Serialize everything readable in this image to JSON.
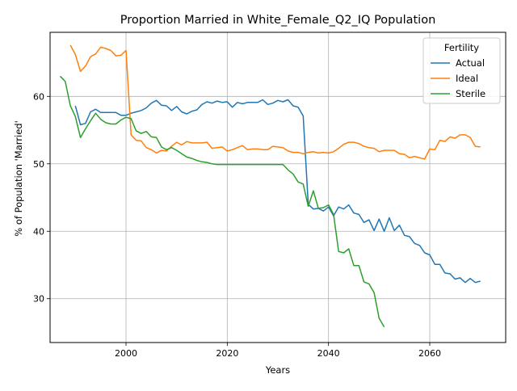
{
  "chart_data": {
    "type": "line",
    "title": "Proportion Married in White_Female_Q2_IQ Population",
    "xlabel": "Years",
    "ylabel": "% of Population 'Married'",
    "xlim": [
      1985,
      2075
    ],
    "ylim": [
      23.5,
      69.5
    ],
    "xticks": [
      2000,
      2020,
      2040,
      2060
    ],
    "yticks": [
      30,
      40,
      50,
      60
    ],
    "grid": true,
    "legend": {
      "title": "Fertility",
      "placement": "top-right"
    },
    "series": [
      {
        "name": "Actual",
        "color": "#1f77b4",
        "points": [
          [
            1990,
            58.6
          ],
          [
            1991,
            55.8
          ],
          [
            1992,
            56.0
          ],
          [
            1993,
            57.7
          ],
          [
            1994,
            58.1
          ],
          [
            1995,
            57.6
          ],
          [
            1996,
            57.6
          ],
          [
            1997,
            57.6
          ],
          [
            1998,
            57.6
          ],
          [
            1999,
            57.2
          ],
          [
            2000,
            57.2
          ],
          [
            2001,
            57.5
          ],
          [
            2002,
            57.7
          ],
          [
            2003,
            57.9
          ],
          [
            2004,
            58.3
          ],
          [
            2005,
            59.0
          ],
          [
            2006,
            59.4
          ],
          [
            2007,
            58.7
          ],
          [
            2008,
            58.6
          ],
          [
            2009,
            57.9
          ],
          [
            2010,
            58.5
          ],
          [
            2011,
            57.7
          ],
          [
            2012,
            57.4
          ],
          [
            2013,
            57.8
          ],
          [
            2014,
            58.0
          ],
          [
            2015,
            58.8
          ],
          [
            2016,
            59.2
          ],
          [
            2017,
            59.0
          ],
          [
            2018,
            59.3
          ],
          [
            2019,
            59.1
          ],
          [
            2020,
            59.2
          ],
          [
            2021,
            58.4
          ],
          [
            2022,
            59.1
          ],
          [
            2023,
            58.9
          ],
          [
            2024,
            59.1
          ],
          [
            2025,
            59.1
          ],
          [
            2026,
            59.1
          ],
          [
            2027,
            59.5
          ],
          [
            2028,
            58.8
          ],
          [
            2029,
            59.0
          ],
          [
            2030,
            59.4
          ],
          [
            2031,
            59.2
          ],
          [
            2032,
            59.5
          ],
          [
            2033,
            58.6
          ],
          [
            2034,
            58.4
          ],
          [
            2035,
            57.1
          ],
          [
            2036,
            44.0
          ],
          [
            2037,
            43.3
          ],
          [
            2038,
            43.4
          ],
          [
            2039,
            43.0
          ],
          [
            2040,
            43.6
          ],
          [
            2041,
            42.3
          ],
          [
            2042,
            43.6
          ],
          [
            2043,
            43.3
          ],
          [
            2044,
            43.9
          ],
          [
            2045,
            42.7
          ],
          [
            2046,
            42.5
          ],
          [
            2047,
            41.3
          ],
          [
            2048,
            41.7
          ],
          [
            2049,
            40.1
          ],
          [
            2050,
            41.8
          ],
          [
            2051,
            40.0
          ],
          [
            2052,
            42.0
          ],
          [
            2053,
            40.1
          ],
          [
            2054,
            40.9
          ],
          [
            2055,
            39.4
          ],
          [
            2056,
            39.2
          ],
          [
            2057,
            38.2
          ],
          [
            2058,
            37.9
          ],
          [
            2059,
            36.8
          ],
          [
            2060,
            36.5
          ],
          [
            2061,
            35.1
          ],
          [
            2062,
            35.1
          ],
          [
            2063,
            33.8
          ],
          [
            2064,
            33.7
          ],
          [
            2065,
            32.9
          ],
          [
            2066,
            33.1
          ],
          [
            2067,
            32.4
          ],
          [
            2068,
            33.0
          ],
          [
            2069,
            32.4
          ],
          [
            2070,
            32.6
          ]
        ]
      },
      {
        "name": "Ideal",
        "color": "#ff7f0e",
        "points": [
          [
            1989,
            67.6
          ],
          [
            1990,
            66.2
          ],
          [
            1991,
            63.7
          ],
          [
            1992,
            64.5
          ],
          [
            1993,
            65.9
          ],
          [
            1994,
            66.3
          ],
          [
            1995,
            67.3
          ],
          [
            1996,
            67.1
          ],
          [
            1997,
            66.8
          ],
          [
            1998,
            66.0
          ],
          [
            1999,
            66.1
          ],
          [
            2000,
            66.8
          ],
          [
            2001,
            54.3
          ],
          [
            2002,
            53.5
          ],
          [
            2003,
            53.4
          ],
          [
            2004,
            52.4
          ],
          [
            2005,
            52.1
          ],
          [
            2006,
            51.6
          ],
          [
            2007,
            52.0
          ],
          [
            2008,
            51.9
          ],
          [
            2009,
            52.6
          ],
          [
            2010,
            53.2
          ],
          [
            2011,
            52.8
          ],
          [
            2012,
            53.3
          ],
          [
            2013,
            53.1
          ],
          [
            2014,
            53.1
          ],
          [
            2015,
            53.1
          ],
          [
            2016,
            53.2
          ],
          [
            2017,
            52.3
          ],
          [
            2018,
            52.4
          ],
          [
            2019,
            52.5
          ],
          [
            2020,
            51.9
          ],
          [
            2021,
            52.1
          ],
          [
            2022,
            52.4
          ],
          [
            2023,
            52.7
          ],
          [
            2024,
            52.1
          ],
          [
            2025,
            52.2
          ],
          [
            2026,
            52.2
          ],
          [
            2027,
            52.1
          ],
          [
            2028,
            52.1
          ],
          [
            2029,
            52.6
          ],
          [
            2030,
            52.5
          ],
          [
            2031,
            52.4
          ],
          [
            2032,
            51.9
          ],
          [
            2033,
            51.7
          ],
          [
            2034,
            51.7
          ],
          [
            2035,
            51.5
          ],
          [
            2036,
            51.7
          ],
          [
            2037,
            51.8
          ],
          [
            2038,
            51.6
          ],
          [
            2039,
            51.7
          ],
          [
            2040,
            51.6
          ],
          [
            2041,
            51.8
          ],
          [
            2042,
            52.3
          ],
          [
            2043,
            52.9
          ],
          [
            2044,
            53.2
          ],
          [
            2045,
            53.2
          ],
          [
            2046,
            53.0
          ],
          [
            2047,
            52.6
          ],
          [
            2048,
            52.4
          ],
          [
            2049,
            52.3
          ],
          [
            2050,
            51.8
          ],
          [
            2051,
            52.0
          ],
          [
            2052,
            52.0
          ],
          [
            2053,
            52.0
          ],
          [
            2054,
            51.5
          ],
          [
            2055,
            51.4
          ],
          [
            2056,
            50.9
          ],
          [
            2057,
            51.1
          ],
          [
            2058,
            50.9
          ],
          [
            2059,
            50.7
          ],
          [
            2060,
            52.2
          ],
          [
            2061,
            52.1
          ],
          [
            2062,
            53.5
          ],
          [
            2063,
            53.3
          ],
          [
            2064,
            54.0
          ],
          [
            2065,
            53.8
          ],
          [
            2066,
            54.3
          ],
          [
            2067,
            54.3
          ],
          [
            2068,
            53.9
          ],
          [
            2069,
            52.6
          ],
          [
            2070,
            52.5
          ]
        ]
      },
      {
        "name": "Sterile",
        "color": "#2ca02c",
        "points": [
          [
            1987,
            63.0
          ],
          [
            1988,
            62.2
          ],
          [
            1989,
            58.6
          ],
          [
            1990,
            57.0
          ],
          [
            1991,
            53.9
          ],
          [
            1992,
            55.2
          ],
          [
            1993,
            56.4
          ],
          [
            1994,
            57.5
          ],
          [
            1995,
            56.6
          ],
          [
            1996,
            56.1
          ],
          [
            1997,
            55.9
          ],
          [
            1998,
            55.9
          ],
          [
            1999,
            56.5
          ],
          [
            2000,
            56.9
          ],
          [
            2001,
            56.7
          ],
          [
            2002,
            54.9
          ],
          [
            2003,
            54.5
          ],
          [
            2004,
            54.8
          ],
          [
            2005,
            54.0
          ],
          [
            2006,
            53.9
          ],
          [
            2007,
            52.5
          ],
          [
            2008,
            52.1
          ],
          [
            2009,
            52.4
          ],
          [
            2010,
            52.0
          ],
          [
            2011,
            51.5
          ],
          [
            2012,
            51.0
          ],
          [
            2013,
            50.8
          ],
          [
            2014,
            50.5
          ],
          [
            2015,
            50.3
          ],
          [
            2016,
            50.2
          ],
          [
            2017,
            50.0
          ],
          [
            2018,
            49.9
          ],
          [
            2019,
            49.9
          ],
          [
            2020,
            49.9
          ],
          [
            2021,
            49.9
          ],
          [
            2022,
            49.9
          ],
          [
            2023,
            49.9
          ],
          [
            2024,
            49.9
          ],
          [
            2025,
            49.9
          ],
          [
            2026,
            49.9
          ],
          [
            2027,
            49.9
          ],
          [
            2028,
            49.9
          ],
          [
            2029,
            49.9
          ],
          [
            2030,
            49.9
          ],
          [
            2031,
            49.9
          ],
          [
            2032,
            49.1
          ],
          [
            2033,
            48.5
          ],
          [
            2034,
            47.3
          ],
          [
            2035,
            47.0
          ],
          [
            2036,
            43.7
          ],
          [
            2037,
            46.0
          ],
          [
            2038,
            43.4
          ],
          [
            2039,
            43.5
          ],
          [
            2040,
            43.9
          ],
          [
            2041,
            42.5
          ],
          [
            2042,
            37.0
          ],
          [
            2043,
            36.8
          ],
          [
            2044,
            37.4
          ],
          [
            2045,
            34.9
          ],
          [
            2046,
            34.9
          ],
          [
            2047,
            32.5
          ],
          [
            2048,
            32.2
          ],
          [
            2049,
            30.9
          ],
          [
            2050,
            27.1
          ],
          [
            2051,
            25.8
          ]
        ]
      }
    ]
  }
}
